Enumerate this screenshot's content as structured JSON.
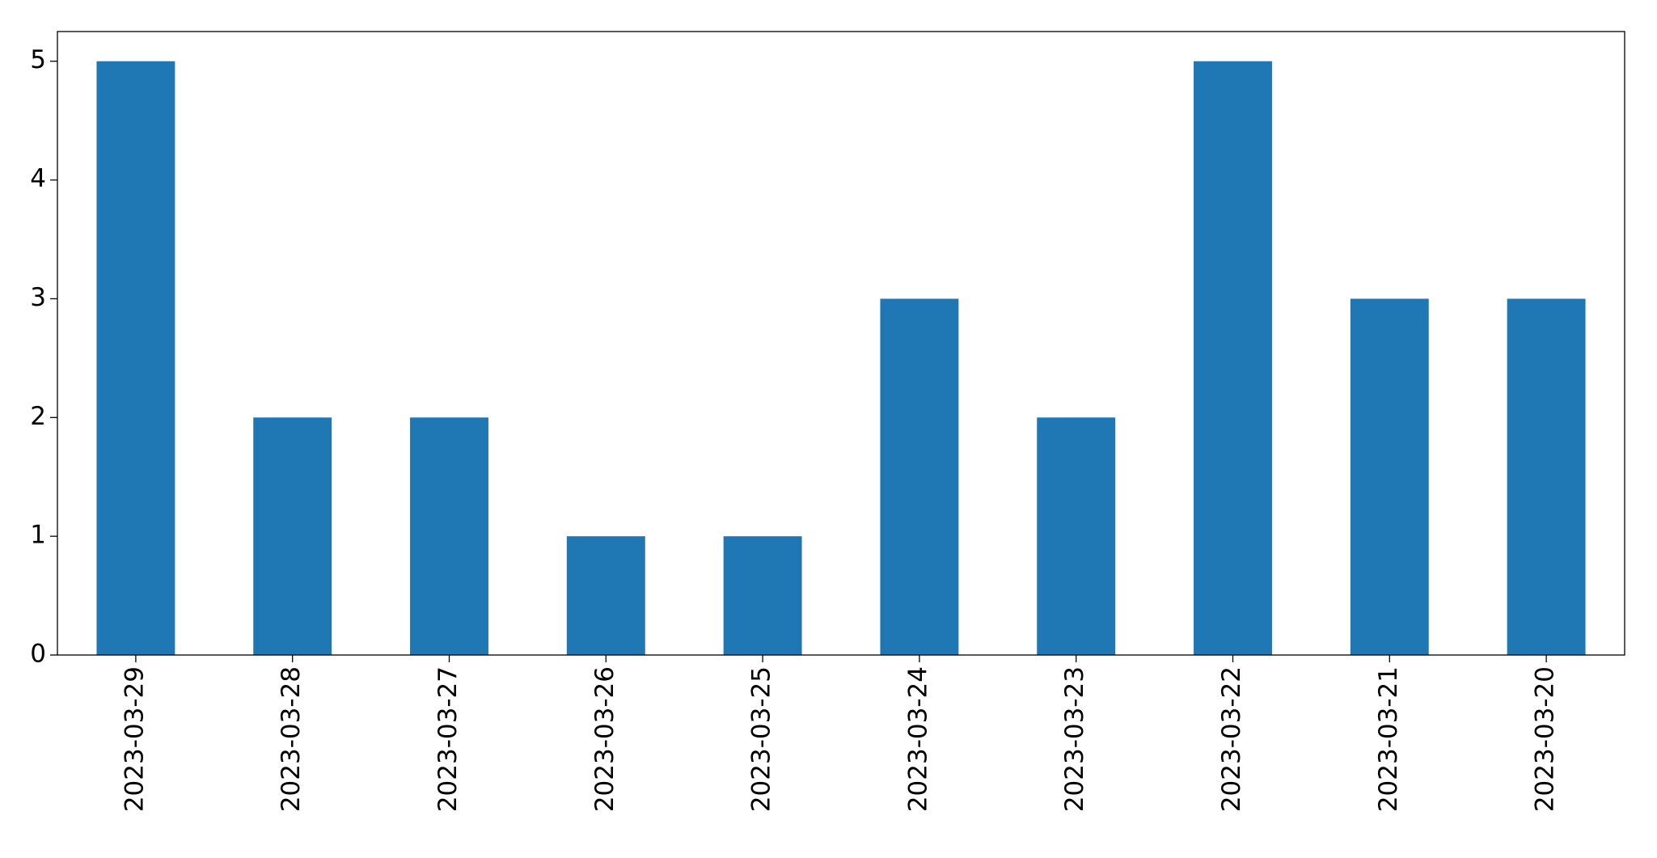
{
  "chart_data": {
    "type": "bar",
    "categories": [
      "2023-03-29",
      "2023-03-28",
      "2023-03-27",
      "2023-03-26",
      "2023-03-25",
      "2023-03-24",
      "2023-03-23",
      "2023-03-22",
      "2023-03-21",
      "2023-03-20"
    ],
    "values": [
      5,
      2,
      2,
      1,
      1,
      3,
      2,
      5,
      3,
      3
    ],
    "color": "#1f77b4",
    "ylim": [
      0,
      5.25
    ],
    "yticks": [
      0,
      1,
      2,
      3,
      4,
      5
    ],
    "grid": false
  }
}
